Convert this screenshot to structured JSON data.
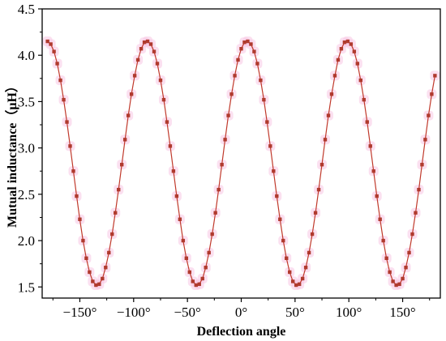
{
  "chart_data": {
    "type": "line",
    "title": "",
    "xlabel": "Deflection angle",
    "ylabel": "Mutual inductance（μH）",
    "xlim": [
      -185,
      185
    ],
    "ylim": [
      1.38,
      4.5
    ],
    "grid": false,
    "legend": "none",
    "x_ticks": [
      -150,
      -100,
      -50,
      0,
      50,
      100,
      150
    ],
    "x_tick_labels": [
      "−150°",
      "−100°",
      "−50°",
      "0°",
      "50°",
      "100°",
      "150°"
    ],
    "y_ticks": [
      1.5,
      2.0,
      2.5,
      3.0,
      3.5,
      4.0,
      4.5
    ],
    "y_tick_labels": [
      "1.5",
      "2.0",
      "2.5",
      "3.0",
      "3.5",
      "4.0",
      "4.5"
    ],
    "series": [
      {
        "color": "#c0392b",
        "marker_color": "#b03a2e",
        "halo_color": "#f7c6e4",
        "x": [
          -180,
          -177,
          -174,
          -171,
          -168,
          -165,
          -162,
          -159,
          -156,
          -153,
          -150,
          -147,
          -144,
          -141,
          -138,
          -135,
          -132,
          -129,
          -126,
          -123,
          -120,
          -117,
          -114,
          -111,
          -108,
          -105,
          -102,
          -99,
          -96,
          -93,
          -90,
          -87,
          -84,
          -81,
          -78,
          -75,
          -72,
          -69,
          -66,
          -63,
          -60,
          -57,
          -54,
          -51,
          -48,
          -45,
          -42,
          -39,
          -36,
          -33,
          -30,
          -27,
          -24,
          -21,
          -18,
          -15,
          -12,
          -9,
          -6,
          -3,
          0,
          3,
          6,
          9,
          12,
          15,
          18,
          21,
          24,
          27,
          30,
          33,
          36,
          39,
          42,
          45,
          48,
          51,
          54,
          57,
          60,
          63,
          66,
          69,
          72,
          75,
          78,
          81,
          84,
          87,
          90,
          93,
          96,
          99,
          102,
          105,
          108,
          111,
          114,
          117,
          120,
          123,
          126,
          129,
          132,
          135,
          138,
          141,
          144,
          147,
          150,
          153,
          156,
          159,
          162,
          165,
          168,
          171,
          174,
          177,
          180
        ],
        "y": [
          4.15,
          4.12,
          4.04,
          3.91,
          3.73,
          3.52,
          3.28,
          3.02,
          2.75,
          2.48,
          2.23,
          2.0,
          1.81,
          1.66,
          1.56,
          1.52,
          1.53,
          1.59,
          1.71,
          1.87,
          2.07,
          2.3,
          2.55,
          2.82,
          3.09,
          3.35,
          3.58,
          3.78,
          3.95,
          4.07,
          4.14,
          4.15,
          4.12,
          4.04,
          3.91,
          3.73,
          3.52,
          3.28,
          3.02,
          2.75,
          2.48,
          2.23,
          2.0,
          1.81,
          1.66,
          1.56,
          1.52,
          1.53,
          1.59,
          1.71,
          1.87,
          2.07,
          2.3,
          2.55,
          2.82,
          3.09,
          3.35,
          3.58,
          3.78,
          3.95,
          4.07,
          4.14,
          4.15,
          4.12,
          4.04,
          3.91,
          3.73,
          3.52,
          3.28,
          3.02,
          2.75,
          2.48,
          2.23,
          2.0,
          1.81,
          1.66,
          1.56,
          1.52,
          1.53,
          1.59,
          1.71,
          1.87,
          2.07,
          2.3,
          2.55,
          2.82,
          3.09,
          3.35,
          3.58,
          3.78,
          3.95,
          4.07,
          4.14,
          4.15,
          4.12,
          4.04,
          3.91,
          3.73,
          3.52,
          3.28,
          3.02,
          2.75,
          2.48,
          2.23,
          2.0,
          1.81,
          1.66,
          1.56,
          1.52,
          1.53,
          1.59,
          1.71,
          1.87,
          2.07,
          2.3,
          2.55,
          2.82,
          3.09,
          3.35,
          3.58,
          3.78
        ]
      }
    ]
  }
}
